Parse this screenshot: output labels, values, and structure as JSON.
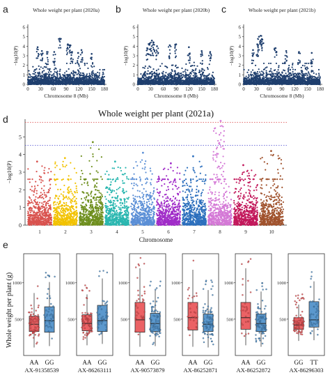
{
  "panels": {
    "a": "a",
    "b": "b",
    "c": "c",
    "d": "d",
    "e": "e"
  },
  "chart_data": [
    {
      "panel": "a",
      "type": "scatter",
      "title": "Whole weight per plant (2020a)",
      "xlabel": "Chromosome 8 (Mb)",
      "ylabel": "−log10(P)",
      "xlim": [
        0,
        180
      ],
      "ylim": [
        0,
        6
      ],
      "xticks": [
        0,
        30,
        60,
        90,
        120,
        150,
        180
      ],
      "yticks": [
        0,
        1,
        2,
        3,
        4,
        5,
        6
      ],
      "point_color": "#1f3f6e",
      "n_points": 1500,
      "base_max": 2.2,
      "peaks": [
        {
          "x": 23,
          "y": 3.9
        },
        {
          "x": 33,
          "y": 3.5
        },
        {
          "x": 45,
          "y": 3.4
        },
        {
          "x": 62,
          "y": 3.4
        },
        {
          "x": 75,
          "y": 4.8
        },
        {
          "x": 94,
          "y": 4.2
        },
        {
          "x": 100,
          "y": 4.1
        },
        {
          "x": 104,
          "y": 3.4
        },
        {
          "x": 118,
          "y": 3.3
        },
        {
          "x": 126,
          "y": 3.6
        },
        {
          "x": 150,
          "y": 3.2
        }
      ]
    },
    {
      "panel": "b",
      "type": "scatter",
      "title": "Whole weight per plant (2020b)",
      "xlabel": "Chromosome 8 (Mb)",
      "ylabel": "−log10(P)",
      "xlim": [
        0,
        180
      ],
      "ylim": [
        0,
        6
      ],
      "xticks": [
        0,
        30,
        60,
        90,
        120,
        150,
        180
      ],
      "yticks": [
        0,
        1,
        2,
        3,
        4,
        5,
        6
      ],
      "point_color": "#1f3f6e",
      "n_points": 1500,
      "base_max": 2.3,
      "peaks": [
        {
          "x": 28,
          "y": 4.3
        },
        {
          "x": 33,
          "y": 4.6
        },
        {
          "x": 37,
          "y": 4.4
        },
        {
          "x": 45,
          "y": 4.0
        },
        {
          "x": 22,
          "y": 3.8
        },
        {
          "x": 75,
          "y": 4.1
        },
        {
          "x": 90,
          "y": 4.2
        },
        {
          "x": 120,
          "y": 3.9
        },
        {
          "x": 150,
          "y": 3.5
        },
        {
          "x": 170,
          "y": 3.4
        }
      ]
    },
    {
      "panel": "c",
      "type": "scatter",
      "title": "Whole weight per plant (2021b)",
      "xlabel": "Chromosome 8 (Mb)",
      "ylabel": "−log10(P)",
      "xlim": [
        0,
        180
      ],
      "ylim": [
        0,
        6
      ],
      "xticks": [
        0,
        30,
        60,
        90,
        120,
        150,
        180
      ],
      "yticks": [
        0,
        1,
        2,
        3,
        4,
        5,
        6
      ],
      "point_color": "#1f3f6e",
      "n_points": 1500,
      "base_max": 2.2,
      "peaks": [
        {
          "x": 32,
          "y": 4.2
        },
        {
          "x": 36,
          "y": 5.0
        },
        {
          "x": 40,
          "y": 5.1
        },
        {
          "x": 44,
          "y": 4.7
        },
        {
          "x": 22,
          "y": 3.6
        },
        {
          "x": 75,
          "y": 3.8
        },
        {
          "x": 100,
          "y": 3.5
        },
        {
          "x": 130,
          "y": 3.4
        },
        {
          "x": 160,
          "y": 3.3
        }
      ]
    },
    {
      "panel": "d",
      "type": "scatter",
      "title": "Whole weight per plant (2021a)",
      "xlabel": "Chromosome",
      "ylabel": "−log10(P)",
      "ylim": [
        0,
        6
      ],
      "yticks": [
        0,
        1,
        2,
        3,
        4,
        5
      ],
      "threshold_lines": [
        {
          "y": 5.82,
          "color": "#e05a5a",
          "style": "dotted"
        },
        {
          "y": 4.52,
          "color": "#4a4ad0",
          "style": "dotted"
        }
      ],
      "chromosomes": [
        {
          "name": "1",
          "color": "#d9534f",
          "max": 3.6
        },
        {
          "name": "2",
          "color": "#f2c200",
          "max": 3.8
        },
        {
          "name": "3",
          "color": "#6e8f1e",
          "max": 4.7
        },
        {
          "name": "4",
          "color": "#2ab7b0",
          "max": 3.6
        },
        {
          "name": "5",
          "color": "#5b8fd6",
          "max": 4.1
        },
        {
          "name": "6",
          "color": "#a02cc8",
          "max": 3.5
        },
        {
          "name": "7",
          "color": "#2c6fbd",
          "max": 3.9
        },
        {
          "name": "8",
          "color": "#d479d6",
          "max": 5.9
        },
        {
          "name": "9",
          "color": "#c2185b",
          "max": 3.4
        },
        {
          "name": "10",
          "color": "#a0522d",
          "max": 4.2
        }
      ]
    },
    {
      "panel": "e",
      "type": "box",
      "ylabel": "Whole weight per plant (g)",
      "ylim": [
        0,
        1400
      ],
      "yticks": [
        500,
        1000
      ],
      "plots": [
        {
          "marker": "AX-91358539",
          "groups": [
            {
              "label": "AA",
              "color": "#e8474a",
              "q1": 330,
              "median": 430,
              "q3": 540,
              "lo": 110,
              "hi": 860,
              "n": 70
            },
            {
              "label": "GG",
              "color": "#3e86c4",
              "q1": 320,
              "median": 480,
              "q3": 670,
              "lo": 130,
              "hi": 1010,
              "n": 45
            }
          ]
        },
        {
          "marker": "AX-86263111",
          "groups": [
            {
              "label": "AA",
              "color": "#e8474a",
              "q1": 340,
              "median": 440,
              "q3": 560,
              "lo": 140,
              "hi": 840,
              "n": 70
            },
            {
              "label": "GG",
              "color": "#3e86c4",
              "q1": 330,
              "median": 480,
              "q3": 690,
              "lo": 160,
              "hi": 1060,
              "n": 45
            }
          ]
        },
        {
          "marker": "AX-90573879",
          "groups": [
            {
              "label": "AA",
              "color": "#e8474a",
              "q1": 320,
              "median": 490,
              "q3": 730,
              "lo": 120,
              "hi": 1200,
              "n": 35
            },
            {
              "label": "GG",
              "color": "#3e86c4",
              "q1": 330,
              "median": 440,
              "q3": 580,
              "lo": 130,
              "hi": 900,
              "n": 75
            }
          ]
        },
        {
          "marker": "AX-86252871",
          "groups": [
            {
              "label": "AA",
              "color": "#e8474a",
              "q1": 350,
              "median": 520,
              "q3": 730,
              "lo": 120,
              "hi": 1180,
              "n": 30
            },
            {
              "label": "GG",
              "color": "#3e86c4",
              "q1": 330,
              "median": 430,
              "q3": 570,
              "lo": 110,
              "hi": 900,
              "n": 80
            }
          ]
        },
        {
          "marker": "AX-86252872",
          "groups": [
            {
              "label": "AA",
              "color": "#e8474a",
              "q1": 360,
              "median": 520,
              "q3": 730,
              "lo": 140,
              "hi": 1200,
              "n": 30
            },
            {
              "label": "GG",
              "color": "#3e86c4",
              "q1": 330,
              "median": 440,
              "q3": 570,
              "lo": 120,
              "hi": 880,
              "n": 80
            }
          ]
        },
        {
          "marker": "AX-86296303",
          "groups": [
            {
              "label": "GG",
              "color": "#e8474a",
              "q1": 360,
              "median": 420,
              "q3": 520,
              "lo": 200,
              "hi": 700,
              "n": 75
            },
            {
              "label": "TT",
              "color": "#3e86c4",
              "q1": 390,
              "median": 490,
              "q3": 740,
              "lo": 210,
              "hi": 1020,
              "n": 40
            }
          ]
        }
      ]
    }
  ]
}
